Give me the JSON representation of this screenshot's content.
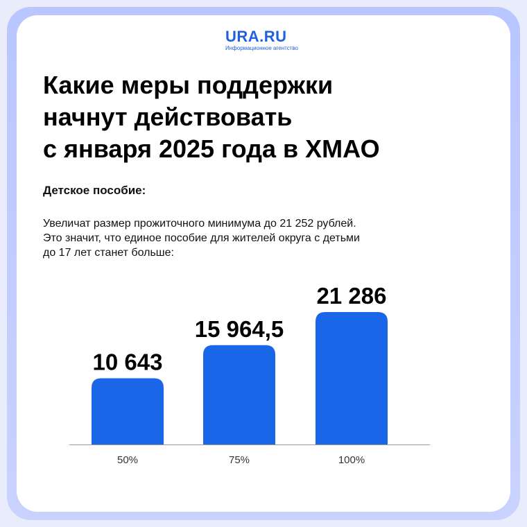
{
  "logo": {
    "name": "URA.RU",
    "tagline": "Информационное агентство"
  },
  "title_lines": [
    "Какие меры поддержки",
    "начнут действовать",
    "с января 2025 года в ХМАО"
  ],
  "subtitle": "Детское пособие:",
  "paragraph_lines": [
    "Увеличат размер прожиточного минимума до 21 252 рублей.",
    "Это значит, что единое пособие для жителей округа с детьми",
    "до 17 лет станет больше:"
  ],
  "colors": {
    "bar": "#1a66e8",
    "accent": "#1f5fe0",
    "frame": "#c4cdfc"
  },
  "chart_data": {
    "type": "bar",
    "categories": [
      "50%",
      "75%",
      "100%"
    ],
    "values": [
      10643,
      15964.5,
      21286
    ],
    "value_labels": [
      "10 643",
      "15 964,5",
      "21 286"
    ],
    "title": "",
    "xlabel": "",
    "ylabel": "",
    "ylim": [
      0,
      21286
    ],
    "grid": false,
    "legend": "none"
  }
}
